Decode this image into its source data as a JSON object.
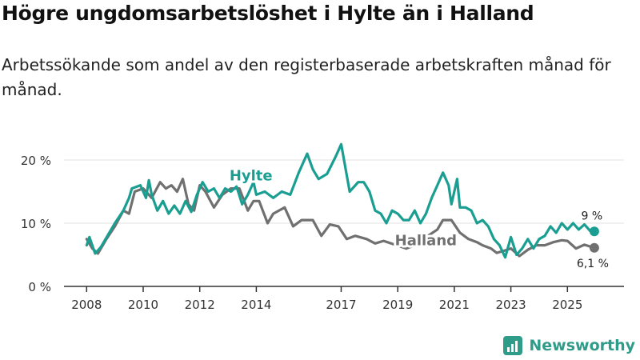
{
  "title": "Högre ungdomsarbetslöshet i Hylte än i Halland",
  "subtitle": "Arbetssökande som andel av den registerbaserade arbetskraften månad för månad.",
  "brand": "Newsworthy",
  "colors": {
    "hylte": "#1a9e92",
    "halland": "#707070",
    "axis": "#333333",
    "grid": "#e0e0e0",
    "brand": "#2f9c8a"
  },
  "chart_data": {
    "type": "line",
    "title": "Högre ungdomsarbetslöshet i Hylte än i Halland",
    "xlabel": "",
    "ylabel": "",
    "xlim": [
      2007.2,
      2027.0
    ],
    "ylim": [
      0,
      20
    ],
    "yticks": [
      0,
      10,
      20
    ],
    "ytick_labels": [
      "0 %",
      "10 %",
      "20 %"
    ],
    "xticks": [
      2008,
      2010,
      2012,
      2014,
      2017,
      2019,
      2021,
      2023,
      2025
    ],
    "xtick_labels": [
      "2008",
      "2010",
      "2012",
      "2014",
      "2017",
      "2019",
      "2021",
      "2023",
      "2025"
    ],
    "grid": true,
    "series": [
      {
        "name": "Hylte",
        "end_label": "9 %",
        "points": [
          [
            2008.0,
            6.5
          ],
          [
            2008.1,
            7.8
          ],
          [
            2008.3,
            5.2
          ],
          [
            2008.5,
            6.2
          ],
          [
            2008.8,
            8.5
          ],
          [
            2009.0,
            10.0
          ],
          [
            2009.3,
            12.0
          ],
          [
            2009.5,
            14.0
          ],
          [
            2009.6,
            15.5
          ],
          [
            2009.9,
            16.0
          ],
          [
            2010.1,
            14.0
          ],
          [
            2010.2,
            16.8
          ],
          [
            2010.3,
            14.5
          ],
          [
            2010.5,
            12.0
          ],
          [
            2010.7,
            13.5
          ],
          [
            2010.9,
            11.5
          ],
          [
            2011.1,
            12.8
          ],
          [
            2011.3,
            11.5
          ],
          [
            2011.5,
            13.5
          ],
          [
            2011.7,
            11.8
          ],
          [
            2011.9,
            14.5
          ],
          [
            2012.1,
            16.5
          ],
          [
            2012.3,
            15.0
          ],
          [
            2012.5,
            15.5
          ],
          [
            2012.7,
            14.0
          ],
          [
            2012.9,
            15.5
          ],
          [
            2013.1,
            15.0
          ],
          [
            2013.3,
            15.8
          ],
          [
            2013.5,
            13.0
          ],
          [
            2013.7,
            14.5
          ],
          [
            2013.9,
            16.5
          ],
          [
            2014.0,
            14.5
          ],
          [
            2014.3,
            15.0
          ],
          [
            2014.6,
            14.0
          ],
          [
            2014.9,
            15.0
          ],
          [
            2015.2,
            14.5
          ],
          [
            2015.5,
            18.0
          ],
          [
            2015.8,
            21.0
          ],
          [
            2016.0,
            18.5
          ],
          [
            2016.2,
            17.0
          ],
          [
            2016.5,
            17.8
          ],
          [
            2016.8,
            20.5
          ],
          [
            2017.0,
            22.5
          ],
          [
            2017.3,
            15.0
          ],
          [
            2017.6,
            16.5
          ],
          [
            2017.8,
            16.5
          ],
          [
            2018.0,
            15.0
          ],
          [
            2018.2,
            12.0
          ],
          [
            2018.4,
            11.5
          ],
          [
            2018.6,
            10.0
          ],
          [
            2018.8,
            12.0
          ],
          [
            2019.0,
            11.5
          ],
          [
            2019.2,
            10.5
          ],
          [
            2019.4,
            10.5
          ],
          [
            2019.6,
            12.0
          ],
          [
            2019.8,
            10.0
          ],
          [
            2020.0,
            11.5
          ],
          [
            2020.2,
            14.0
          ],
          [
            2020.4,
            16.0
          ],
          [
            2020.6,
            18.0
          ],
          [
            2020.8,
            16.0
          ],
          [
            2020.9,
            13.0
          ],
          [
            2021.1,
            17.0
          ],
          [
            2021.2,
            12.5
          ],
          [
            2021.4,
            12.5
          ],
          [
            2021.6,
            12.0
          ],
          [
            2021.8,
            10.0
          ],
          [
            2022.0,
            10.5
          ],
          [
            2022.2,
            9.5
          ],
          [
            2022.4,
            7.5
          ],
          [
            2022.6,
            6.5
          ],
          [
            2022.8,
            4.6
          ],
          [
            2023.0,
            7.8
          ],
          [
            2023.2,
            5.0
          ],
          [
            2023.4,
            6.0
          ],
          [
            2023.6,
            7.5
          ],
          [
            2023.8,
            6.0
          ],
          [
            2024.0,
            7.5
          ],
          [
            2024.2,
            8.0
          ],
          [
            2024.4,
            9.5
          ],
          [
            2024.6,
            8.5
          ],
          [
            2024.8,
            10.0
          ],
          [
            2025.0,
            9.0
          ],
          [
            2025.2,
            10.0
          ],
          [
            2025.4,
            9.0
          ],
          [
            2025.6,
            9.8
          ],
          [
            2025.8,
            8.8
          ],
          [
            2025.95,
            8.7
          ]
        ]
      },
      {
        "name": "Halland",
        "end_label": "6,1 %",
        "points": [
          [
            2008.0,
            7.5
          ],
          [
            2008.2,
            6.0
          ],
          [
            2008.4,
            5.2
          ],
          [
            2008.7,
            7.5
          ],
          [
            2009.0,
            9.5
          ],
          [
            2009.3,
            12.0
          ],
          [
            2009.5,
            11.5
          ],
          [
            2009.7,
            15.0
          ],
          [
            2010.0,
            15.5
          ],
          [
            2010.3,
            14.0
          ],
          [
            2010.6,
            16.5
          ],
          [
            2010.8,
            15.5
          ],
          [
            2011.0,
            16.0
          ],
          [
            2011.2,
            15.0
          ],
          [
            2011.4,
            17.0
          ],
          [
            2011.6,
            13.0
          ],
          [
            2011.8,
            12.0
          ],
          [
            2012.0,
            16.0
          ],
          [
            2012.2,
            15.0
          ],
          [
            2012.5,
            12.5
          ],
          [
            2012.8,
            14.5
          ],
          [
            2013.1,
            15.5
          ],
          [
            2013.4,
            15.5
          ],
          [
            2013.7,
            12.0
          ],
          [
            2013.9,
            13.5
          ],
          [
            2014.1,
            13.5
          ],
          [
            2014.4,
            10.0
          ],
          [
            2014.6,
            11.5
          ],
          [
            2015.0,
            12.5
          ],
          [
            2015.3,
            9.5
          ],
          [
            2015.6,
            10.5
          ],
          [
            2016.0,
            10.5
          ],
          [
            2016.3,
            8.0
          ],
          [
            2016.6,
            9.8
          ],
          [
            2016.9,
            9.5
          ],
          [
            2017.2,
            7.5
          ],
          [
            2017.5,
            8.0
          ],
          [
            2017.9,
            7.5
          ],
          [
            2018.2,
            6.8
          ],
          [
            2018.5,
            7.2
          ],
          [
            2019.3,
            6.0
          ],
          [
            2019.6,
            6.5
          ],
          [
            2020.0,
            7.8
          ],
          [
            2020.4,
            9.0
          ],
          [
            2020.6,
            10.5
          ],
          [
            2020.9,
            10.5
          ],
          [
            2021.2,
            8.5
          ],
          [
            2021.5,
            7.5
          ],
          [
            2021.8,
            7.0
          ],
          [
            2022.0,
            6.5
          ],
          [
            2022.3,
            6.0
          ],
          [
            2022.5,
            5.3
          ],
          [
            2022.8,
            5.7
          ],
          [
            2023.0,
            6.0
          ],
          [
            2023.3,
            4.8
          ],
          [
            2023.6,
            5.8
          ],
          [
            2023.9,
            6.5
          ],
          [
            2024.2,
            6.5
          ],
          [
            2024.5,
            7.0
          ],
          [
            2024.8,
            7.3
          ],
          [
            2025.0,
            7.2
          ],
          [
            2025.3,
            6.0
          ],
          [
            2025.6,
            6.6
          ],
          [
            2025.95,
            6.1
          ]
        ]
      }
    ],
    "annotations": [
      {
        "text": "Hylte",
        "series": "Hylte"
      },
      {
        "text": "Halland",
        "series": "Halland"
      }
    ]
  }
}
